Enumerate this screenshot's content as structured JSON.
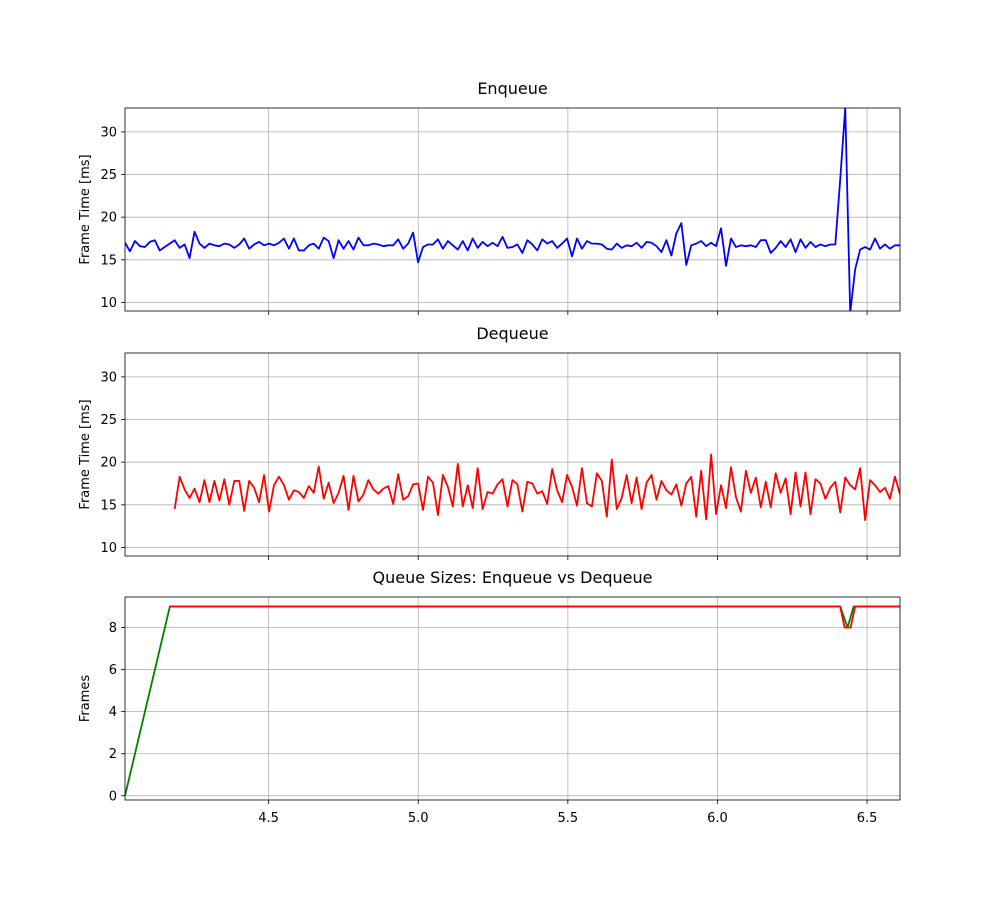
{
  "chart_data": [
    {
      "type": "line",
      "title": "Enqueue",
      "ylabel": "Frame Time [ms]",
      "xlim": [
        4.02,
        6.61
      ],
      "ylim": [
        9,
        32.8
      ],
      "xticks": [
        4.5,
        5.0,
        5.5,
        6.0,
        6.5
      ],
      "xtick_labels": [],
      "yticks": [
        10,
        15,
        20,
        25,
        30
      ],
      "ytick_labels": [
        "10",
        "15",
        "20",
        "25",
        "30"
      ],
      "grid": true,
      "series": [
        {
          "color": "#0000ff",
          "x_start": 4.02,
          "x_step": 0.0166,
          "values": [
            17.0,
            16.0,
            17.2,
            16.6,
            16.5,
            17.1,
            17.3,
            16.1,
            16.5,
            16.9,
            17.3,
            16.4,
            16.8,
            15.2,
            18.3,
            16.9,
            16.4,
            16.9,
            16.7,
            16.6,
            16.9,
            16.8,
            16.4,
            16.8,
            17.5,
            16.3,
            16.8,
            17.1,
            16.7,
            16.9,
            16.7,
            17.0,
            17.5,
            16.3,
            17.5,
            16.1,
            16.1,
            16.7,
            16.9,
            16.3,
            17.6,
            17.2,
            15.2,
            17.3,
            16.3,
            17.2,
            16.2,
            17.6,
            16.7,
            16.7,
            16.9,
            16.8,
            16.6,
            16.7,
            16.7,
            17.4,
            16.3,
            16.9,
            18.2,
            14.7,
            16.5,
            16.8,
            16.8,
            17.4,
            16.3,
            17.2,
            16.7,
            16.2,
            17.2,
            16.1,
            17.5,
            16.4,
            17.1,
            16.6,
            17.0,
            16.6,
            17.7,
            16.4,
            16.5,
            16.8,
            15.8,
            17.3,
            16.8,
            16.1,
            17.4,
            16.9,
            17.2,
            16.4,
            16.9,
            17.5,
            15.4,
            17.5,
            16.3,
            17.2,
            16.9,
            16.9,
            16.8,
            16.3,
            16.2,
            16.9,
            16.4,
            16.7,
            16.6,
            17.0,
            16.4,
            17.1,
            17.0,
            16.6,
            15.9,
            17.3,
            15.5,
            18.1,
            19.3,
            14.4,
            16.7,
            16.9,
            17.2,
            16.6,
            17.0,
            16.6,
            18.7,
            14.3,
            17.5,
            16.5,
            16.7,
            16.6,
            16.7,
            16.5,
            17.3,
            17.3,
            15.8,
            16.4,
            17.2,
            16.5,
            17.4,
            15.9,
            17.4,
            16.4,
            17.1,
            16.5,
            16.8,
            16.6,
            16.8,
            16.8,
            24.5,
            32.8,
            8.8,
            13.9,
            16.2,
            16.5,
            16.2,
            17.5,
            16.3,
            16.8,
            16.3,
            16.7,
            16.7,
            17.0
          ]
        }
      ]
    },
    {
      "type": "line",
      "title": "Dequeue",
      "ylabel": "Frame Time [ms]",
      "xlim": [
        4.02,
        6.61
      ],
      "ylim": [
        9,
        32.8
      ],
      "xticks": [
        4.5,
        5.0,
        5.5,
        6.0,
        6.5
      ],
      "xtick_labels": [],
      "yticks": [
        10,
        15,
        20,
        25,
        30
      ],
      "ytick_labels": [
        "10",
        "15",
        "20",
        "25",
        "30"
      ],
      "grid": true,
      "series": [
        {
          "color": "#ff0000",
          "x_start": 4.186,
          "x_step": 0.0166,
          "values": [
            14.5,
            18.3,
            16.8,
            15.8,
            16.9,
            15.3,
            17.9,
            15.3,
            17.8,
            15.5,
            18.0,
            15.0,
            17.8,
            17.8,
            14.3,
            17.8,
            17.0,
            15.3,
            18.5,
            14.2,
            17.3,
            18.3,
            17.3,
            15.6,
            16.7,
            16.5,
            15.8,
            17.2,
            16.4,
            19.5,
            15.7,
            17.6,
            15.2,
            16.4,
            18.4,
            14.4,
            18.4,
            15.4,
            16.2,
            17.9,
            16.8,
            16.3,
            16.9,
            17.2,
            15.1,
            18.6,
            15.6,
            16.0,
            17.4,
            17.5,
            14.4,
            18.3,
            17.6,
            13.8,
            18.5,
            17.1,
            14.8,
            19.8,
            14.8,
            17.3,
            14.6,
            19.3,
            14.5,
            16.5,
            16.3,
            17.4,
            18.0,
            14.8,
            17.9,
            17.4,
            14.2,
            17.7,
            17.5,
            16.3,
            16.6,
            15.1,
            19.2,
            16.7,
            15.3,
            18.5,
            17.1,
            14.9,
            19.3,
            15.2,
            14.8,
            18.7,
            17.8,
            13.6,
            20.3,
            14.5,
            15.8,
            18.5,
            15.2,
            18.2,
            14.5,
            17.6,
            18.5,
            15.6,
            17.8,
            16.7,
            16.2,
            17.4,
            14.9,
            17.5,
            18.3,
            13.6,
            19.0,
            13.3,
            20.9,
            13.9,
            17.3,
            14.6,
            19.4,
            15.9,
            14.2,
            19.0,
            16.4,
            18.2,
            14.7,
            17.7,
            14.7,
            18.7,
            16.4,
            18.1,
            13.9,
            18.8,
            14.8,
            18.8,
            13.9,
            18.0,
            17.5,
            15.7,
            17.0,
            17.7,
            14.1,
            18.2,
            17.3,
            16.8,
            19.3,
            13.2,
            17.9,
            17.3,
            16.5,
            17.0,
            15.7,
            18.3,
            16.3,
            15.8,
            19.7
          ]
        }
      ]
    },
    {
      "type": "line",
      "title": "Queue Sizes: Enqueue vs Dequeue",
      "ylabel": "Frames",
      "xlim": [
        4.02,
        6.61
      ],
      "ylim": [
        -0.2,
        9.45
      ],
      "xticks": [
        4.5,
        5.0,
        5.5,
        6.0,
        6.5
      ],
      "xtick_labels": [
        "4.5",
        "5.0",
        "5.5",
        "6.0",
        "6.5"
      ],
      "yticks": [
        0,
        2,
        4,
        6,
        8
      ],
      "ytick_labels": [
        "0",
        "2",
        "4",
        "6",
        "8"
      ],
      "grid": true,
      "series": [
        {
          "color": "#008000",
          "points": [
            [
              4.02,
              0
            ],
            [
              4.17,
              9
            ],
            [
              6.41,
              9
            ],
            [
              6.435,
              8
            ],
            [
              6.455,
              9
            ],
            [
              6.61,
              9
            ]
          ]
        },
        {
          "color": "#ff0000",
          "points": [
            [
              4.17,
              9
            ],
            [
              6.41,
              9
            ],
            [
              6.425,
              8
            ],
            [
              6.445,
              8
            ],
            [
              6.46,
              9
            ],
            [
              6.61,
              9
            ]
          ]
        }
      ]
    }
  ]
}
